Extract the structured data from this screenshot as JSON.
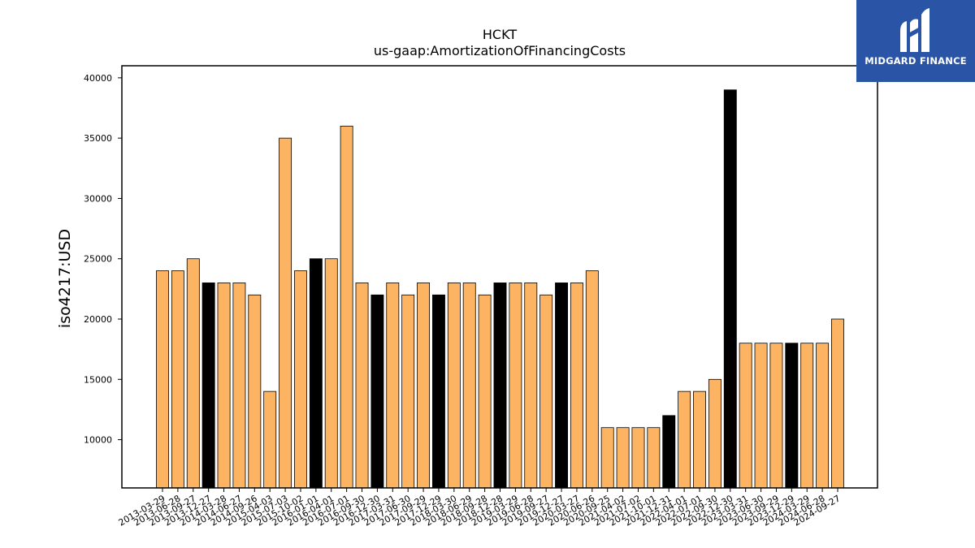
{
  "brand": {
    "name": "MIDGARD FINANCE",
    "background": "#2a55a6"
  },
  "chart_data": {
    "type": "bar",
    "title": "HCKT",
    "subtitle": "us-gaap:AmortizationOfFinancingCosts",
    "xlabel": "",
    "ylabel": "iso4217:USD",
    "ylim": [
      6000,
      41000
    ],
    "yticks": [
      10000,
      15000,
      20000,
      25000,
      30000,
      35000,
      40000
    ],
    "grid": false,
    "colors": {
      "default": "#fdb462",
      "highlight": "#000000",
      "edge": "#000000"
    },
    "categories": [
      "2013-03-29",
      "2013-06-28",
      "2013-09-27",
      "2013-12-27",
      "2014-03-28",
      "2014-06-27",
      "2014-09-26",
      "2015-04-03",
      "2015-07-03",
      "2015-10-02",
      "2016-01-01",
      "2016-04-01",
      "2016-07-01",
      "2016-09-30",
      "2016-12-30",
      "2017-03-31",
      "2017-06-30",
      "2017-09-29",
      "2017-12-29",
      "2018-03-30",
      "2018-06-29",
      "2018-09-28",
      "2018-12-28",
      "2019-03-29",
      "2019-06-28",
      "2019-09-27",
      "2019-12-27",
      "2020-03-27",
      "2020-06-26",
      "2020-09-25",
      "2021-04-02",
      "2021-07-02",
      "2021-10-01",
      "2021-12-31",
      "2022-04-01",
      "2022-07-01",
      "2022-09-30",
      "2022-12-30",
      "2023-03-31",
      "2023-06-30",
      "2023-09-29",
      "2023-12-29",
      "2024-03-29",
      "2024-06-28",
      "2024-09-27"
    ],
    "values": [
      24000,
      24000,
      25000,
      23000,
      23000,
      23000,
      22000,
      14000,
      35000,
      24000,
      25000,
      25000,
      36000,
      23000,
      22000,
      23000,
      22000,
      23000,
      22000,
      23000,
      23000,
      22000,
      23000,
      23000,
      23000,
      22000,
      23000,
      23000,
      24000,
      11000,
      11000,
      11000,
      11000,
      12000,
      14000,
      14000,
      15000,
      39000,
      18000,
      18000,
      18000,
      18000,
      18000,
      18000,
      20000
    ],
    "highlighted": [
      false,
      false,
      false,
      true,
      false,
      false,
      false,
      false,
      false,
      false,
      true,
      false,
      false,
      false,
      true,
      false,
      false,
      false,
      true,
      false,
      false,
      false,
      true,
      false,
      false,
      false,
      true,
      false,
      false,
      false,
      false,
      false,
      false,
      true,
      false,
      false,
      false,
      true,
      false,
      false,
      false,
      true,
      false,
      false,
      false
    ]
  }
}
